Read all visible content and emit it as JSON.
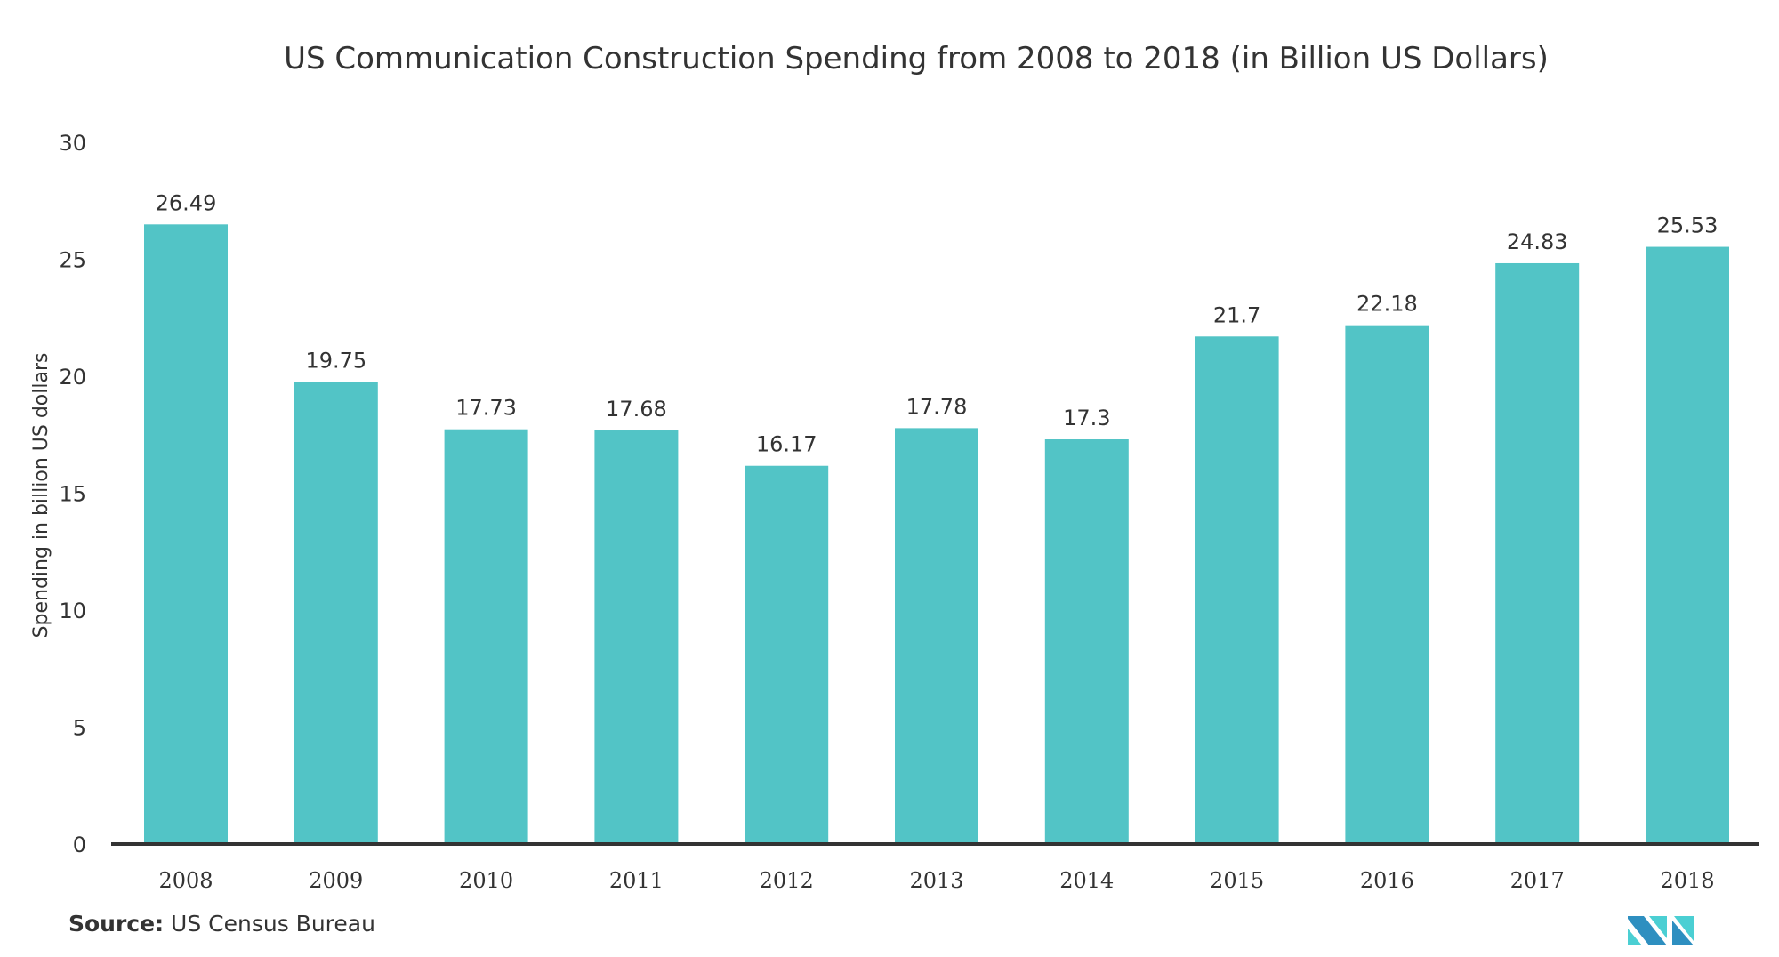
{
  "chart_data": {
    "type": "bar",
    "title": "US Communication Construction Spending from 2008 to 2018 (in Billion US Dollars)",
    "xlabel": "",
    "ylabel": "Spending in billion US dollars",
    "categories": [
      "2008",
      "2009",
      "2010",
      "2011",
      "2012",
      "2013",
      "2014",
      "2015",
      "2016",
      "2017",
      "2018"
    ],
    "values": [
      26.49,
      19.75,
      17.73,
      17.68,
      16.17,
      17.78,
      17.3,
      21.7,
      22.18,
      24.83,
      25.53
    ],
    "data_labels": [
      "26.49",
      "19.75",
      "17.73",
      "17.68",
      "16.17",
      "17.78",
      "17.3",
      "21.7",
      "22.18",
      "24.83",
      "25.53"
    ],
    "ylim": [
      0,
      30
    ],
    "yticks": [
      0,
      5,
      10,
      15,
      20,
      25,
      30
    ],
    "grid": false,
    "legend": "none",
    "bar_color": "#52c4c6",
    "axis_color": "#333333"
  },
  "footer": {
    "source_label": "Source:",
    "source_text": "US Census Bureau"
  },
  "logo": {
    "icon": "mordor-intelligence-logo-icon",
    "colors": {
      "dark": "#2e8fc0",
      "light": "#4bcfd3"
    }
  }
}
